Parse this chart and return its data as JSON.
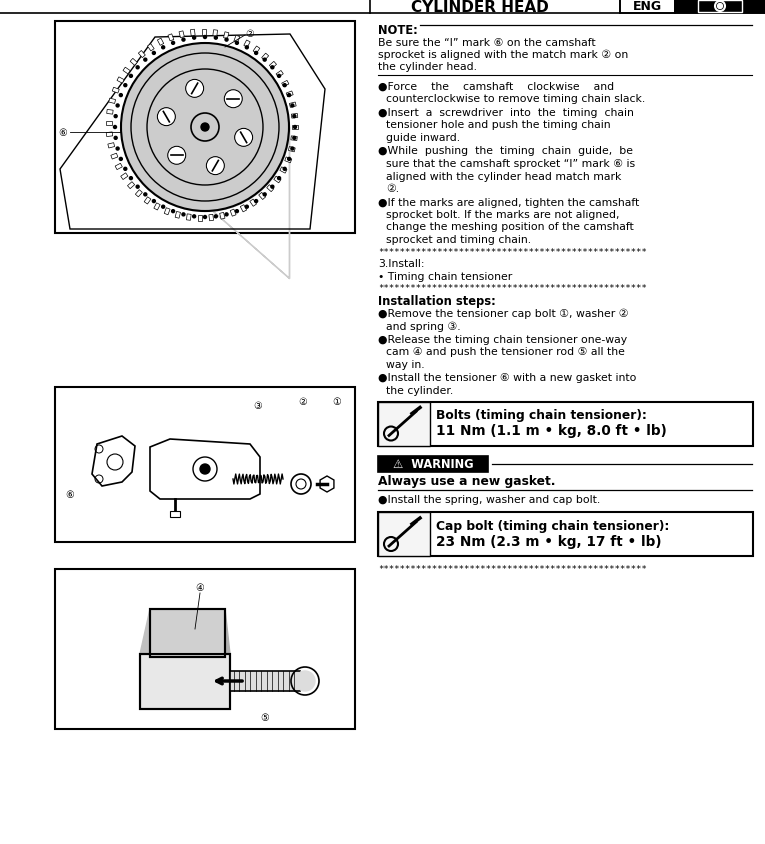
{
  "bg_color": "#ffffff",
  "header_title": "CYLINDER HEAD",
  "header_tag": "ENG",
  "note_label": "NOTE:",
  "note_text_lines": [
    "Be sure the “I” mark ⑥ on the camshaft",
    "sprocket is aligned with the match mark ② on",
    "the cylinder head."
  ],
  "bullets_top": [
    [
      "●Force    the    camshaft    clockwise    and",
      "counterclockwise to remove timing chain slack."
    ],
    [
      "●Insert  a  screwdriver  into  the  timing  chain",
      "tensioner hole and push the timing chain",
      "guide inward."
    ],
    [
      "●While  pushing  the  timing  chain  guide,  be",
      "sure that the camshaft sprocket “I” mark ⑥ is",
      "aligned with the cylinder head match mark",
      "②."
    ],
    [
      "●If the marks are aligned, tighten the camshaft",
      "sprocket bolt. If the marks are not aligned,",
      "change the meshing position of the camshaft",
      "sprocket and timing chain."
    ]
  ],
  "install_heading": "3.Install:",
  "install_bullet": "• Timing chain tensioner",
  "install_steps_heading": "Installation steps:",
  "install_steps": [
    [
      "●Remove the tensioner cap bolt ①, washer ②",
      "and spring ③."
    ],
    [
      "●Release the timing chain tensioner one-way",
      "cam ④ and push the tensioner rod ⑤ all the",
      "way in."
    ],
    [
      "●Install the tensioner ⑥ with a new gasket into",
      "the cylinder."
    ]
  ],
  "torque1_line1": "Bolts (timing chain tensioner):",
  "torque1_line2": "11 Nm (1.1 m • kg, 8.0 ft • lb)",
  "warning_label": "⚠  WARNING",
  "warning_text": "Always use a new gasket.",
  "install_spring": "●Install the spring, washer and cap bolt.",
  "torque2_line1": "Cap bolt (timing chain tensioner):",
  "torque2_line2": "23 Nm (2.3 m • kg, 17 ft • lb)",
  "stars": "**************************************************"
}
